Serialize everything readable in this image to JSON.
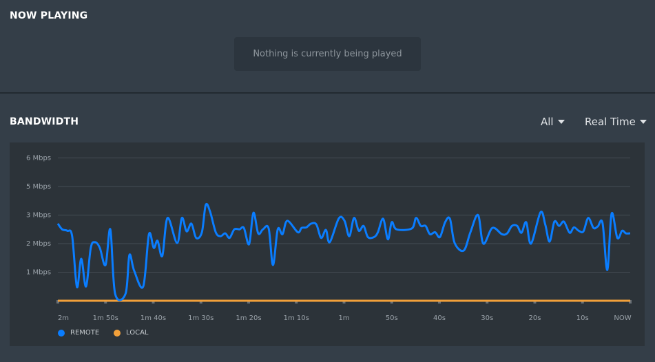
{
  "now_playing": {
    "title": "NOW PLAYING",
    "empty_message": "Nothing is currently being played"
  },
  "bandwidth": {
    "title": "BANDWIDTH",
    "filter_dropdown": "All",
    "range_dropdown": "Real Time"
  },
  "colors": {
    "remote": "#0a7dff",
    "local": "#f2a03a",
    "grid": "#454d55"
  },
  "chart_data": {
    "type": "line",
    "title": "BANDWIDTH",
    "xlabel": "",
    "ylabel": "",
    "y_tick_labels": [
      "1 Mbps",
      "2 Mbps",
      "3 Mbps",
      "5 Mbps",
      "6 Mbps"
    ],
    "x_tick_labels": [
      "2m",
      "1m 50s",
      "1m 40s",
      "1m 30s",
      "1m 20s",
      "1m 10s",
      "1m",
      "50s",
      "40s",
      "30s",
      "20s",
      "10s",
      "NOW"
    ],
    "x_unit": "seconds elapsed in 2-minute window",
    "xlim": [
      0,
      120
    ],
    "ylim": [
      0,
      5
    ],
    "grid": true,
    "legend_placement": "bottom-left",
    "series": [
      {
        "name": "REMOTE",
        "points": [
          [
            0,
            2.7
          ],
          [
            0.9,
            2.5
          ],
          [
            2,
            2.45
          ],
          [
            3,
            2.26
          ],
          [
            4,
            0.48
          ],
          [
            4.9,
            1.47
          ],
          [
            5.9,
            0.5
          ],
          [
            6.9,
            1.85
          ],
          [
            7.8,
            2.05
          ],
          [
            8.8,
            1.85
          ],
          [
            10,
            1.25
          ],
          [
            11,
            2.5
          ],
          [
            12,
            0.25
          ],
          [
            14.2,
            0.25
          ],
          [
            15,
            1.6
          ],
          [
            16,
            1.05
          ],
          [
            17.9,
            0.5
          ],
          [
            19.1,
            2.33
          ],
          [
            20.1,
            1.85
          ],
          [
            20.9,
            2.1
          ],
          [
            21.9,
            1.57
          ],
          [
            23,
            2.9
          ],
          [
            25,
            2.02
          ],
          [
            26,
            2.9
          ],
          [
            27,
            2.43
          ],
          [
            28,
            2.7
          ],
          [
            29,
            2.2
          ],
          [
            30.2,
            2.4
          ],
          [
            31,
            3.35
          ],
          [
            31.9,
            3.13
          ],
          [
            33.1,
            2.4
          ],
          [
            34.1,
            2.26
          ],
          [
            35.1,
            2.36
          ],
          [
            36,
            2.2
          ],
          [
            37,
            2.5
          ],
          [
            38.1,
            2.5
          ],
          [
            39,
            2.55
          ],
          [
            40.1,
            1.98
          ],
          [
            41,
            3.08
          ],
          [
            42,
            2.36
          ],
          [
            43,
            2.5
          ],
          [
            44.2,
            2.53
          ],
          [
            45.1,
            1.25
          ],
          [
            46.1,
            2.5
          ],
          [
            47.1,
            2.33
          ],
          [
            48.1,
            2.8
          ],
          [
            50.3,
            2.4
          ],
          [
            51.1,
            2.55
          ],
          [
            52.1,
            2.57
          ],
          [
            53.1,
            2.7
          ],
          [
            54.2,
            2.67
          ],
          [
            55.2,
            2.2
          ],
          [
            56.2,
            2.48
          ],
          [
            57,
            2.05
          ],
          [
            58.9,
            2.88
          ],
          [
            60.1,
            2.8
          ],
          [
            61.1,
            2.26
          ],
          [
            62.1,
            2.9
          ],
          [
            63.1,
            2.45
          ],
          [
            64.1,
            2.62
          ],
          [
            65,
            2.23
          ],
          [
            66.3,
            2.23
          ],
          [
            67.1,
            2.4
          ],
          [
            68.2,
            2.87
          ],
          [
            69.2,
            2.15
          ],
          [
            70,
            2.75
          ],
          [
            71,
            2.5
          ],
          [
            74.2,
            2.53
          ],
          [
            75.1,
            2.9
          ],
          [
            76.1,
            2.62
          ],
          [
            77.1,
            2.62
          ],
          [
            78,
            2.33
          ],
          [
            79.1,
            2.4
          ],
          [
            80.1,
            2.23
          ],
          [
            81.2,
            2.75
          ],
          [
            82.2,
            2.87
          ],
          [
            83.2,
            2.02
          ],
          [
            85.1,
            1.76
          ],
          [
            86.5,
            2.4
          ],
          [
            88.1,
            3.0
          ],
          [
            89.2,
            2.0
          ],
          [
            91.1,
            2.55
          ],
          [
            93.1,
            2.33
          ],
          [
            94.2,
            2.36
          ],
          [
            95.2,
            2.62
          ],
          [
            96.3,
            2.62
          ],
          [
            97.2,
            2.38
          ],
          [
            98.2,
            2.75
          ],
          [
            99.2,
            2.0
          ],
          [
            101.2,
            3.1
          ],
          [
            102.2,
            2.66
          ],
          [
            103.1,
            2.07
          ],
          [
            104.1,
            2.77
          ],
          [
            105.1,
            2.62
          ],
          [
            106.1,
            2.77
          ],
          [
            107.3,
            2.38
          ],
          [
            108.2,
            2.57
          ],
          [
            109.2,
            2.45
          ],
          [
            110.2,
            2.43
          ],
          [
            111.2,
            2.9
          ],
          [
            112.3,
            2.55
          ],
          [
            113.2,
            2.6
          ],
          [
            114.2,
            2.72
          ],
          [
            115.2,
            1.08
          ],
          [
            116.1,
            3.05
          ],
          [
            117.3,
            2.2
          ],
          [
            118.3,
            2.45
          ],
          [
            119.1,
            2.36
          ],
          [
            120,
            2.36
          ]
        ]
      },
      {
        "name": "LOCAL",
        "points": [
          [
            0,
            0
          ],
          [
            120,
            0
          ]
        ]
      }
    ]
  }
}
